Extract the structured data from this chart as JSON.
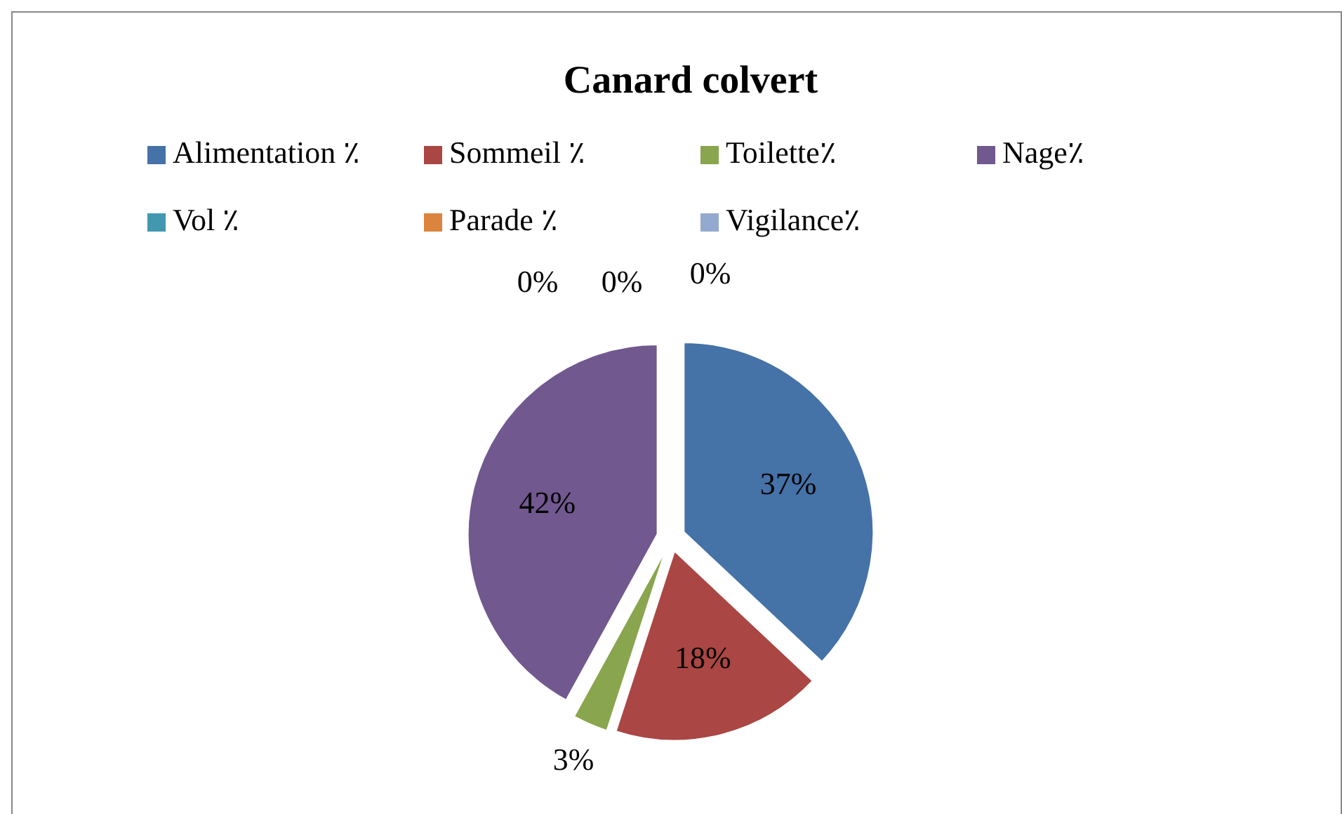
{
  "chart_data": {
    "type": "pie",
    "title": "Canard colvert",
    "categories": [
      "Alimentation ٪",
      "Sommeil ٪",
      "Toilette٪",
      "Nage٪",
      "Vol ٪",
      "Parade ٪",
      "Vigilance٪"
    ],
    "values": [
      37,
      18,
      3,
      42,
      0,
      0,
      0
    ],
    "colors": [
      "#4572a7",
      "#aa4643",
      "#89a54e",
      "#71588f",
      "#4198af",
      "#db843d",
      "#93a9cf"
    ],
    "value_labels": [
      "37%",
      "18%",
      "3%",
      "42%",
      "0%",
      "0%",
      "0%"
    ],
    "legend": "top"
  }
}
